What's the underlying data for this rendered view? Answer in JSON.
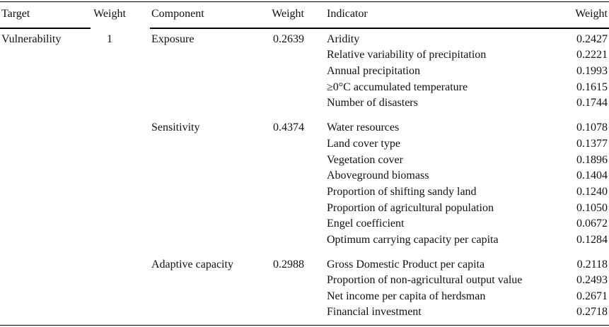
{
  "header": {
    "target": "Target",
    "weight1": "Weight",
    "component": "Component",
    "weight2": "Weight",
    "indicator": "Indicator",
    "weight3": "Weight"
  },
  "target": {
    "name": "Vulnerability",
    "weight": "1"
  },
  "components": [
    {
      "name": "Exposure",
      "weight": "0.2639",
      "indicators": [
        {
          "name": "Aridity",
          "weight": "0.2427"
        },
        {
          "name": "Relative variability of precipitation",
          "weight": "0.2221"
        },
        {
          "name": "Annual precipitation",
          "weight": "0.1993"
        },
        {
          "name": "≥0°C accumulated temperature",
          "weight": "0.1615"
        },
        {
          "name": "Number of disasters",
          "weight": "0.1744"
        }
      ]
    },
    {
      "name": "Sensitivity",
      "weight": "0.4374",
      "indicators": [
        {
          "name": "Water resources",
          "weight": "0.1078"
        },
        {
          "name": "Land cover type",
          "weight": "0.1377"
        },
        {
          "name": "Vegetation cover",
          "weight": "0.1896"
        },
        {
          "name": "Aboveground biomass",
          "weight": "0.1404"
        },
        {
          "name": "Proportion of shifting sandy land",
          "weight": "0.1240"
        },
        {
          "name": "Proportion of agricultural population",
          "weight": "0.1050"
        },
        {
          "name": "Engel coefficient",
          "weight": "0.0672"
        },
        {
          "name": "Optimum carrying capacity per capita",
          "weight": "0.1284"
        }
      ]
    },
    {
      "name": "Adaptive capacity",
      "weight": "0.2988",
      "indicators": [
        {
          "name": "Gross Domestic Product per capita",
          "weight": "0.2118"
        },
        {
          "name": "Proportion of non-agricultural output value",
          "weight": "0.2493"
        },
        {
          "name": "Net income per capita of herdsman",
          "weight": "0.2671"
        },
        {
          "name": "Financial investment",
          "weight": "0.2718"
        }
      ]
    }
  ]
}
